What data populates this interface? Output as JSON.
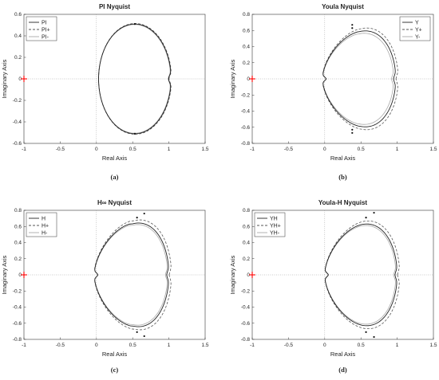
{
  "chart_data": [
    {
      "type": "line",
      "title": "PI Nyquist",
      "caption": "(a)",
      "xlabel": "Real Axis",
      "ylabel": "Imaginary Axis",
      "xlim": [
        -1,
        1.5
      ],
      "ylim": [
        -0.6,
        0.6
      ],
      "xticks": [
        "-1",
        "-0.5",
        "0",
        "0.5",
        "1",
        "1.5"
      ],
      "yticks": [
        "-0.6",
        "-0.4",
        "-0.2",
        "0",
        "0.2",
        "0.4",
        "0.6"
      ],
      "legend_position": "top-left",
      "critical_point": {
        "x": -1,
        "y": 0,
        "color": "#ff0000"
      },
      "series": [
        {
          "name": "PI",
          "style": "solid",
          "color": "#222222",
          "curve": "circle",
          "params": {
            "c": 0.53,
            "r": 0.5,
            "scale": 1.0,
            "nose": 0.0
          }
        },
        {
          "name": "PI+",
          "style": "dashed",
          "color": "#555555",
          "curve": "circle",
          "params": {
            "c": 0.53,
            "r": 0.5,
            "scale": 1.01,
            "nose": 0.0
          }
        },
        {
          "name": "PI-",
          "style": "solid",
          "color": "#aaaaaa",
          "curve": "circle",
          "params": {
            "c": 0.53,
            "r": 0.5,
            "scale": 0.99,
            "nose": 0.0
          }
        }
      ],
      "markers": [
        {
          "x": 0.53,
          "y": 0.51
        },
        {
          "x": 0.53,
          "y": -0.51
        }
      ]
    },
    {
      "type": "line",
      "title": "Youla Nyquist",
      "caption": "(b)",
      "xlabel": "Real Axis",
      "ylabel": "Imaginary Axis",
      "xlim": [
        -1,
        1.5
      ],
      "ylim": [
        -0.8,
        0.8
      ],
      "xticks": [
        "-1",
        "-0.5",
        "0",
        "0.5",
        "1",
        "1.5"
      ],
      "yticks": [
        "-0.8",
        "-0.6",
        "-0.4",
        "-0.2",
        "0",
        "0.2",
        "0.4",
        "0.6",
        "0.8"
      ],
      "legend_position": "top-right",
      "critical_point": {
        "x": -1,
        "y": 0,
        "color": "#ff0000"
      },
      "series": [
        {
          "name": "Y",
          "style": "solid",
          "color": "#222222",
          "curve": "cardioid",
          "params": {
            "c": 0.48,
            "r": 0.5,
            "scale": 1.0,
            "nose": 0.01
          }
        },
        {
          "name": "Y+",
          "style": "dashed",
          "color": "#555555",
          "curve": "cardioid",
          "params": {
            "c": 0.48,
            "r": 0.5,
            "scale": 1.06,
            "nose": 0.01
          }
        },
        {
          "name": "Y-",
          "style": "solid",
          "color": "#aaaaaa",
          "curve": "cardioid",
          "params": {
            "c": 0.48,
            "r": 0.5,
            "scale": 0.95,
            "nose": 0.01
          }
        }
      ],
      "markers": [
        {
          "x": 0.38,
          "y": 0.67
        },
        {
          "x": 0.38,
          "y": 0.63
        },
        {
          "x": 0.38,
          "y": -0.63
        },
        {
          "x": 0.38,
          "y": -0.67
        }
      ]
    },
    {
      "type": "line",
      "title": "H∞ Nyquist",
      "caption": "(c)",
      "xlabel": "Real Axis",
      "ylabel": "Imaginary Axis",
      "xlim": [
        -1,
        1.5
      ],
      "ylim": [
        -0.8,
        0.8
      ],
      "xticks": [
        "-1",
        "-0.5",
        "0",
        "0.5",
        "1",
        "1.5"
      ],
      "yticks": [
        "-0.8",
        "-0.6",
        "-0.4",
        "-0.2",
        "0",
        "0.2",
        "0.4",
        "0.6",
        "0.8"
      ],
      "legend_position": "top-left",
      "critical_point": {
        "x": -1,
        "y": 0,
        "color": "#ff0000"
      },
      "series": [
        {
          "name": "H",
          "style": "solid",
          "color": "#222222",
          "curve": "cardioid",
          "params": {
            "c": 0.5,
            "r": 0.54,
            "scale": 1.0,
            "nose": 0.03
          }
        },
        {
          "name": "H+",
          "style": "dashed",
          "color": "#555555",
          "curve": "cardioid",
          "params": {
            "c": 0.5,
            "r": 0.54,
            "scale": 1.06,
            "nose": 0.03
          }
        },
        {
          "name": "H-",
          "style": "solid",
          "color": "#aaaaaa",
          "curve": "cardioid",
          "params": {
            "c": 0.5,
            "r": 0.54,
            "scale": 0.97,
            "nose": 0.03
          }
        }
      ],
      "markers": [
        {
          "x": 0.66,
          "y": 0.76
        },
        {
          "x": 0.56,
          "y": 0.71
        },
        {
          "x": 0.56,
          "y": -0.71
        },
        {
          "x": 0.66,
          "y": -0.76
        }
      ]
    },
    {
      "type": "line",
      "title": "Youla-H Nyquist",
      "caption": "(d)",
      "xlabel": "Real Axis",
      "ylabel": "Imaginary Axis",
      "xlim": [
        -1,
        1.5
      ],
      "ylim": [
        -0.8,
        0.8
      ],
      "xticks": [
        "-1",
        "-0.5",
        "0",
        "0.5",
        "1",
        "1.5"
      ],
      "yticks": [
        "-0.8",
        "-0.6",
        "-0.4",
        "-0.2",
        "0",
        "0.2",
        "0.4",
        "0.6",
        "0.8"
      ],
      "legend_position": "top-left",
      "critical_point": {
        "x": -1,
        "y": 0,
        "color": "#ff0000"
      },
      "series": [
        {
          "name": "YH",
          "style": "solid",
          "color": "#222222",
          "curve": "cardioid",
          "params": {
            "c": 0.5,
            "r": 0.53,
            "scale": 1.0,
            "nose": 0.0
          }
        },
        {
          "name": "YH+",
          "style": "dashed",
          "color": "#555555",
          "curve": "cardioid",
          "params": {
            "c": 0.5,
            "r": 0.53,
            "scale": 1.06,
            "nose": 0.0
          }
        },
        {
          "name": "YH-",
          "style": "solid",
          "color": "#aaaaaa",
          "curve": "cardioid",
          "params": {
            "c": 0.5,
            "r": 0.53,
            "scale": 0.97,
            "nose": 0.0
          }
        }
      ],
      "markers": [
        {
          "x": 0.68,
          "y": 0.77
        },
        {
          "x": 0.57,
          "y": 0.71
        },
        {
          "x": 0.57,
          "y": -0.71
        },
        {
          "x": 0.68,
          "y": -0.77
        }
      ]
    }
  ]
}
